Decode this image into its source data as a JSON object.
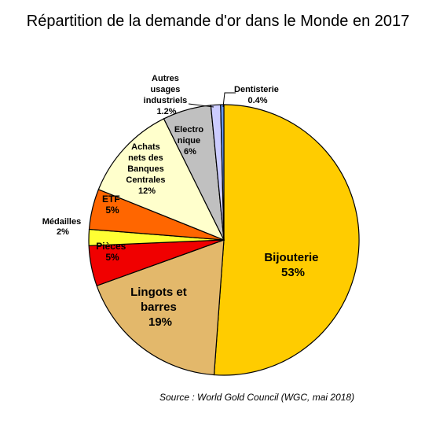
{
  "chart_data": {
    "type": "pie",
    "title": "Répartition de la demande d'or dans le Monde en 2017",
    "slices": [
      {
        "name": "Bijouterie",
        "value_label": "53%",
        "value": 53,
        "color": "#FFCC00"
      },
      {
        "name": "Lingots et barres",
        "value_label": "19%",
        "value": 19,
        "color": "#E3B86B"
      },
      {
        "name": "Pièces",
        "value_label": "5%",
        "value": 5,
        "color": "#F00000"
      },
      {
        "name": "Médailles",
        "value_label": "2%",
        "value": 2,
        "color": "#FFFF33"
      },
      {
        "name": "ETF",
        "value_label": "5%",
        "value": 5,
        "color": "#FF6600"
      },
      {
        "name": "Achats nets des Banques Centrales",
        "value_label": "12%",
        "value": 12,
        "color": "#FFFFCC"
      },
      {
        "name": "Electro nique",
        "value_label": "6%",
        "value": 6,
        "color": "#C0C0C0"
      },
      {
        "name": "Autres usages industriels",
        "value_label": "1.2%",
        "value": 1.2,
        "color": "#CCCCFF"
      },
      {
        "name": "Dentisterie",
        "value_label": "0.4%",
        "value": 0.4,
        "color": "#6699FF"
      }
    ],
    "source": "Source : World Gold Council (WGC, mai 2018)"
  }
}
